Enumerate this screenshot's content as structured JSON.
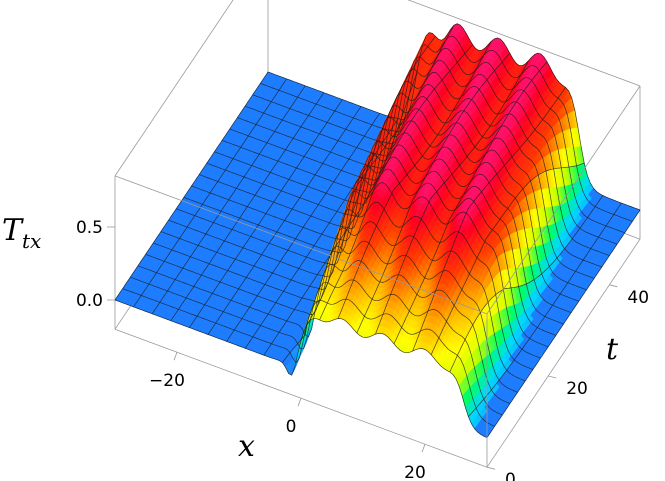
{
  "chart_data": {
    "type": "surface3d",
    "title": "",
    "x_axis": {
      "label": "x",
      "range": [
        -30,
        30
      ],
      "ticks": [
        -20,
        0,
        20
      ],
      "tick_labels": [
        "−20",
        "0",
        "20"
      ]
    },
    "t_axis": {
      "label": "t",
      "range": [
        0,
        50
      ],
      "ticks": [
        0,
        20,
        40
      ],
      "tick_labels": [
        "0",
        "20",
        "40"
      ]
    },
    "z_axis": {
      "label_main": "T",
      "label_sub": "tx",
      "range": [
        -0.2,
        0.85
      ],
      "ticks": [
        0.0,
        0.5
      ],
      "tick_labels": [
        "0.0",
        "0.5"
      ]
    },
    "surface": {
      "description_values": {
        "baseline": 0.0,
        "plateau_height": 0.75,
        "ripple_peak": 0.85,
        "front_x_at_t0": 0,
        "front_x_at_t50": -6,
        "plateau_width_x": 26
      }
    },
    "colormap": [
      "#0a5cff",
      "#1e90ff",
      "#00d8ff",
      "#00ff66",
      "#c8ff00",
      "#ffff00",
      "#ffaa00",
      "#ff4000",
      "#ff0020",
      "#ff1a8c"
    ],
    "flat_color": "#1e7dff",
    "box_color": "#9a9a9a"
  }
}
